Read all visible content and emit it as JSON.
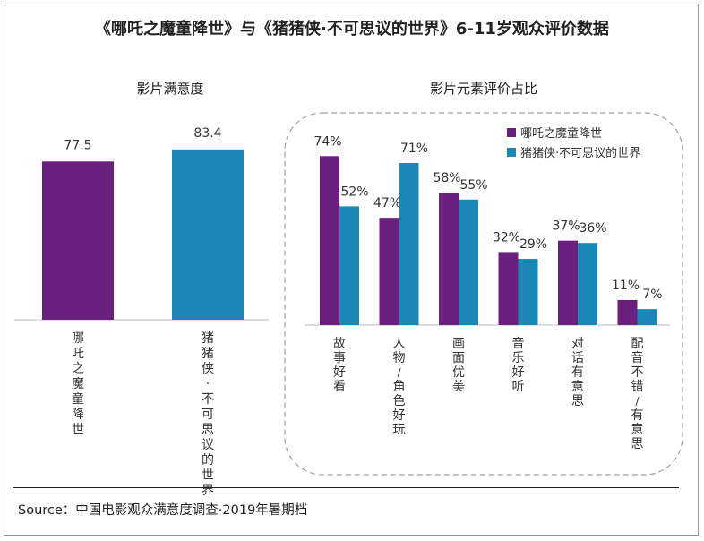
{
  "title": "《哪吒之魔童降世》与《猪猪侠·不可思议的世界》6-11岁观众评价数据",
  "source": "Source：中国电影观众满意度调查·2019年暑期档",
  "colors": {
    "purple": "#6b1f7e",
    "blue": "#1b87b7"
  },
  "chart_data": [
    {
      "type": "bar",
      "title": "影片满意度",
      "categories": [
        "哪吒之魔童降世",
        "猪猪侠·不可思议的世界"
      ],
      "values": [
        77.5,
        83.4
      ],
      "value_labels": [
        "77.5",
        "83.4"
      ],
      "ylim": [
        0,
        100
      ]
    },
    {
      "type": "bar",
      "title": "影片元素评价占比",
      "categories": [
        "故事好看",
        "人物/角色好玩",
        "画面优美",
        "音乐好听",
        "对话有意思",
        "配音不错/有意思"
      ],
      "series": [
        {
          "name": "哪吒之魔童降世",
          "values": [
            74,
            47,
            58,
            32,
            37,
            11
          ],
          "labels": [
            "74%",
            "47%",
            "58%",
            "32%",
            "37%",
            "11%"
          ]
        },
        {
          "name": "猪猪侠·不可思议的世界",
          "values": [
            52,
            71,
            55,
            29,
            36,
            7
          ],
          "labels": [
            "52%",
            "71%",
            "55%",
            "29%",
            "36%",
            "7%"
          ]
        }
      ],
      "legend": "top-right",
      "ylim": [
        0,
        100
      ]
    }
  ]
}
